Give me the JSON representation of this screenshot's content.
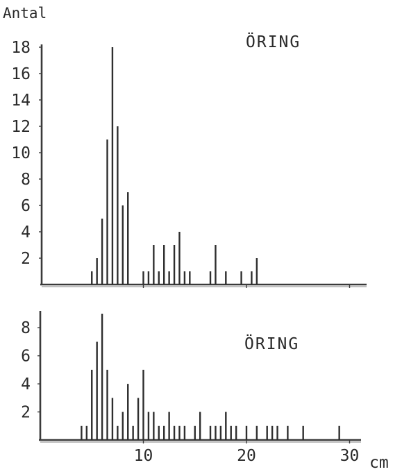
{
  "chart_data": [
    {
      "type": "bar",
      "title": "ÖRING",
      "ylabel": "Antal",
      "xlabel": "",
      "ylim": [
        0,
        18
      ],
      "xlim": [
        0,
        31
      ],
      "yticks": [
        "2",
        "4",
        "6",
        "8",
        "10",
        "12",
        "14",
        "16",
        "18"
      ],
      "xticks": [],
      "x": [
        5.0,
        5.5,
        6.0,
        6.5,
        7.0,
        7.5,
        8.0,
        8.5,
        10.0,
        10.5,
        11.0,
        11.5,
        12.0,
        12.5,
        13.0,
        13.5,
        14.0,
        14.5,
        16.5,
        17.0,
        18.0,
        19.5,
        20.5,
        21.0
      ],
      "values": [
        1,
        2,
        5,
        11,
        18,
        12,
        6,
        7,
        1,
        1,
        3,
        1,
        3,
        1,
        3,
        4,
        1,
        1,
        1,
        3,
        1,
        1,
        1,
        2
      ]
    },
    {
      "type": "bar",
      "title": "ÖRING",
      "ylabel": "",
      "xlabel": "cm",
      "ylim": [
        0,
        9
      ],
      "xlim": [
        0,
        31
      ],
      "yticks": [
        "2",
        "4",
        "6",
        "8"
      ],
      "xticks": [
        "10",
        "20",
        "30"
      ],
      "x": [
        4.0,
        4.5,
        5.0,
        5.5,
        6.0,
        6.5,
        7.0,
        7.5,
        8.0,
        8.5,
        9.0,
        9.5,
        10.0,
        10.5,
        11.0,
        11.5,
        12.0,
        12.5,
        13.0,
        13.5,
        14.0,
        15.0,
        15.5,
        16.5,
        17.0,
        17.5,
        18.0,
        18.5,
        19.0,
        20.0,
        21.0,
        22.0,
        22.5,
        23.0,
        24.0,
        25.5,
        29.0
      ],
      "values": [
        1,
        1,
        5,
        7,
        9,
        5,
        3,
        1,
        2,
        4,
        1,
        3,
        5,
        2,
        2,
        1,
        1,
        2,
        1,
        1,
        1,
        1,
        2,
        1,
        1,
        1,
        2,
        1,
        1,
        1,
        1,
        1,
        1,
        1,
        1,
        1,
        1
      ]
    }
  ]
}
